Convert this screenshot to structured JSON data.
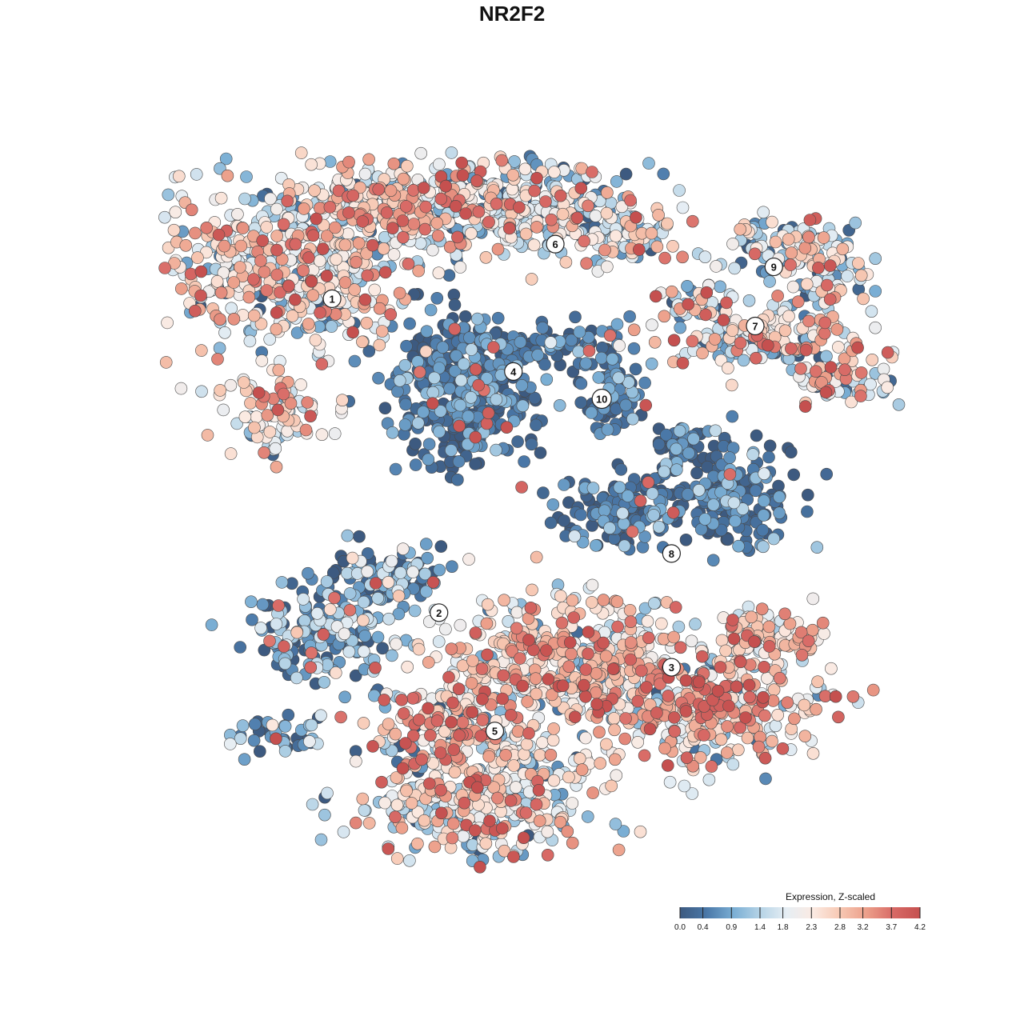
{
  "title": "NR2F2",
  "chart_data": {
    "type": "scatter",
    "title": "NR2F2",
    "xlabel": "",
    "ylabel": "",
    "grid": false,
    "axes_visible": false,
    "color_scale": {
      "title": "Expression, Z-scaled",
      "min": 0.0,
      "max": 4.2,
      "ticks": [
        "0.0",
        "0.4",
        "0.9",
        "1.4",
        "1.8",
        "2.3",
        "2.8",
        "3.2",
        "3.7",
        "4.2"
      ],
      "colors": [
        "#3d5a80",
        "#4a78a8",
        "#7aaed4",
        "#b5d3e6",
        "#e6eef4",
        "#fbeae2",
        "#f7c8b3",
        "#ec9f8a",
        "#d86a66",
        "#c5504f"
      ],
      "legend_position": "bottom-right"
    },
    "xlim": [
      -40,
      40
    ],
    "ylim": [
      -40,
      40
    ],
    "clusters": [
      {
        "id": "1",
        "label_x": -21.5,
        "label_y": 23.0,
        "mean_expression": 2.1,
        "spread": 1.0
      },
      {
        "id": "2",
        "label_x": -10.0,
        "label_y": -11.5,
        "mean_expression": 0.6,
        "spread": 0.8
      },
      {
        "id": "3",
        "label_x": 15.0,
        "label_y": -17.5,
        "mean_expression": 2.5,
        "spread": 0.9
      },
      {
        "id": "4",
        "label_x": -2.0,
        "label_y": 15.0,
        "mean_expression": 0.3,
        "spread": 0.5
      },
      {
        "id": "5",
        "label_x": -4.0,
        "label_y": -24.5,
        "mean_expression": 2.1,
        "spread": 1.0
      },
      {
        "id": "6",
        "label_x": 2.5,
        "label_y": 29.0,
        "mean_expression": 1.7,
        "spread": 1.0
      },
      {
        "id": "7",
        "label_x": 24.0,
        "label_y": 20.0,
        "mean_expression": 2.0,
        "spread": 1.1
      },
      {
        "id": "8",
        "label_x": 15.0,
        "label_y": -5.0,
        "mean_expression": 0.3,
        "spread": 0.5
      },
      {
        "id": "9",
        "label_x": 26.0,
        "label_y": 26.5,
        "mean_expression": 1.6,
        "spread": 1.0
      },
      {
        "id": "10",
        "label_x": 7.5,
        "label_y": 12.0,
        "mean_expression": 0.4,
        "spread": 0.5
      }
    ]
  }
}
